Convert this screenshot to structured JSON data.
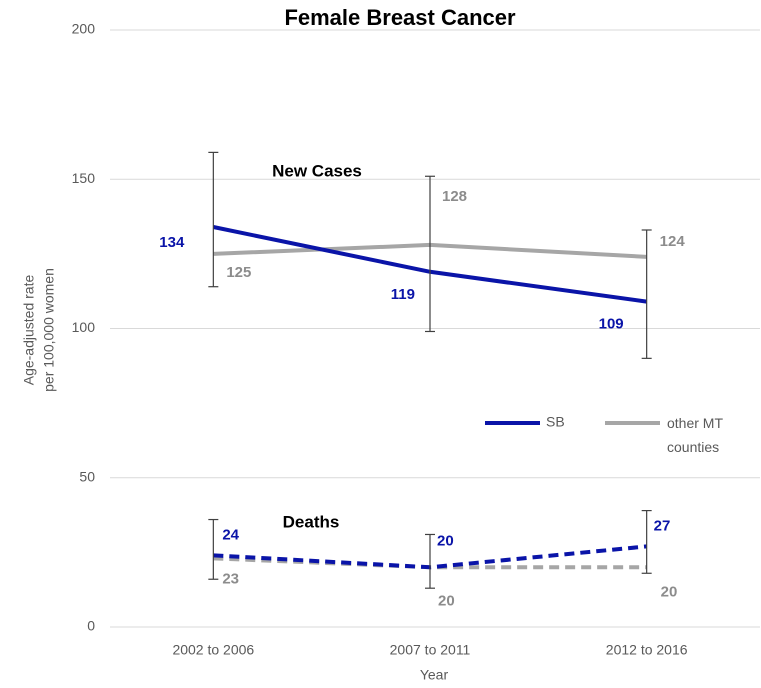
{
  "chart_data": {
    "type": "line",
    "title": "Female Breast Cancer",
    "x_label": "Year",
    "y_label": [
      "Age-adjusted rate",
      "per 100,000 women"
    ],
    "categories": [
      "2002 to 2006",
      "2007 to 2011",
      "2012 to 2016"
    ],
    "ylim": [
      0,
      200
    ],
    "yticks": [
      0,
      50,
      100,
      150,
      200
    ],
    "grid": true,
    "legend_position": "lower right",
    "legend": [
      {
        "name": "SB",
        "color": "#0a14a8"
      },
      {
        "name": "other MT counties",
        "color": "#a6a6a6"
      }
    ],
    "groups": [
      {
        "label": "New Cases",
        "style": "solid",
        "series": [
          {
            "values": [
              134,
              119,
              109
            ],
            "ci_low": [
              114,
              99,
              90
            ],
            "ci_high": [
              159,
              151,
              133
            ]
          },
          {
            "values": [
              125,
              128,
              124
            ]
          }
        ]
      },
      {
        "label": "Deaths",
        "style": "dashed",
        "series": [
          {
            "values": [
              24,
              20,
              27
            ],
            "ci_low": [
              16,
              13,
              18
            ],
            "ci_high": [
              36,
              31,
              39
            ]
          },
          {
            "values": [
              23,
              20,
              20
            ]
          }
        ]
      }
    ]
  }
}
